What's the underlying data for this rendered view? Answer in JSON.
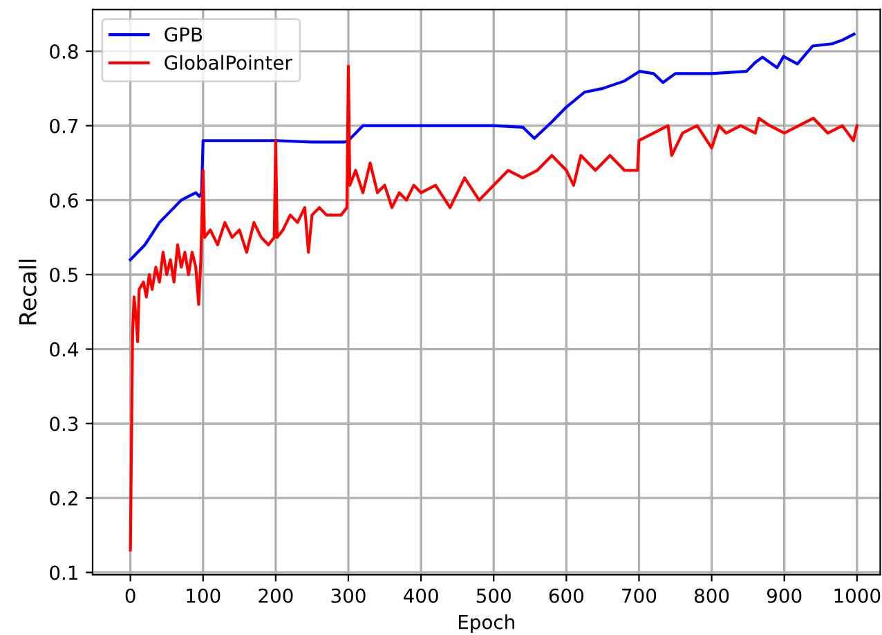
{
  "chart_data": {
    "type": "line",
    "xlabel": "Epoch",
    "ylabel": "Recall",
    "xlim": [
      -52,
      1032
    ],
    "ylim": [
      0.097,
      0.856
    ],
    "xticks": [
      0,
      100,
      200,
      300,
      400,
      500,
      600,
      700,
      800,
      900,
      1000
    ],
    "yticks": [
      0.1,
      0.2,
      0.3,
      0.4,
      0.5,
      0.6,
      0.7,
      0.8
    ],
    "grid": true,
    "legend": "top left",
    "line_style": "solid",
    "marker": "none",
    "series": [
      {
        "name": "GPB",
        "color": "#0000ff",
        "x": [
          0,
          10,
          20,
          30,
          40,
          50,
          60,
          70,
          80,
          90,
          95,
          98,
          100,
          150,
          200,
          250,
          295,
          300,
          320,
          400,
          500,
          540,
          556,
          580,
          600,
          625,
          650,
          680,
          701,
          720,
          733,
          750,
          800,
          848,
          860,
          870,
          880,
          890,
          899,
          918,
          939,
          966,
          980,
          996
        ],
        "values": [
          0.52,
          0.53,
          0.54,
          0.555,
          0.57,
          0.58,
          0.59,
          0.6,
          0.605,
          0.61,
          0.605,
          0.61,
          0.68,
          0.68,
          0.68,
          0.678,
          0.678,
          0.68,
          0.7,
          0.7,
          0.7,
          0.698,
          0.683,
          0.705,
          0.725,
          0.745,
          0.75,
          0.76,
          0.773,
          0.77,
          0.758,
          0.77,
          0.77,
          0.773,
          0.785,
          0.792,
          0.785,
          0.778,
          0.793,
          0.783,
          0.807,
          0.81,
          0.815,
          0.823
        ]
      },
      {
        "name": "GlobalPointer",
        "color": "#ff0000",
        "x": [
          0,
          3,
          5,
          8,
          10,
          12,
          18,
          22,
          26,
          30,
          35,
          40,
          45,
          50,
          55,
          60,
          65,
          70,
          75,
          80,
          85,
          90,
          94,
          97,
          100,
          102,
          110,
          120,
          130,
          140,
          150,
          160,
          170,
          180,
          190,
          198,
          200,
          202,
          210,
          220,
          230,
          240,
          245,
          250,
          260,
          270,
          280,
          290,
          298,
          300,
          302,
          310,
          320,
          330,
          340,
          350,
          360,
          370,
          380,
          390,
          400,
          420,
          440,
          460,
          480,
          500,
          520,
          540,
          560,
          580,
          600,
          610,
          620,
          640,
          660,
          680,
          698,
          700,
          720,
          740,
          745,
          760,
          780,
          800,
          810,
          820,
          840,
          860,
          865,
          880,
          900,
          920,
          940,
          960,
          980,
          995,
          1000
        ],
        "values": [
          0.13,
          0.42,
          0.47,
          0.44,
          0.41,
          0.48,
          0.49,
          0.47,
          0.5,
          0.48,
          0.51,
          0.49,
          0.53,
          0.5,
          0.52,
          0.49,
          0.54,
          0.51,
          0.53,
          0.5,
          0.53,
          0.51,
          0.46,
          0.52,
          0.64,
          0.55,
          0.56,
          0.54,
          0.57,
          0.55,
          0.56,
          0.53,
          0.57,
          0.55,
          0.54,
          0.55,
          0.68,
          0.55,
          0.56,
          0.58,
          0.57,
          0.59,
          0.53,
          0.58,
          0.59,
          0.58,
          0.58,
          0.58,
          0.59,
          0.78,
          0.62,
          0.64,
          0.61,
          0.65,
          0.61,
          0.62,
          0.59,
          0.61,
          0.6,
          0.62,
          0.61,
          0.62,
          0.59,
          0.63,
          0.6,
          0.62,
          0.64,
          0.63,
          0.64,
          0.66,
          0.64,
          0.62,
          0.66,
          0.64,
          0.66,
          0.64,
          0.64,
          0.68,
          0.69,
          0.7,
          0.66,
          0.69,
          0.7,
          0.67,
          0.7,
          0.69,
          0.7,
          0.69,
          0.71,
          0.7,
          0.69,
          0.7,
          0.71,
          0.69,
          0.7,
          0.68,
          0.7
        ]
      }
    ]
  }
}
